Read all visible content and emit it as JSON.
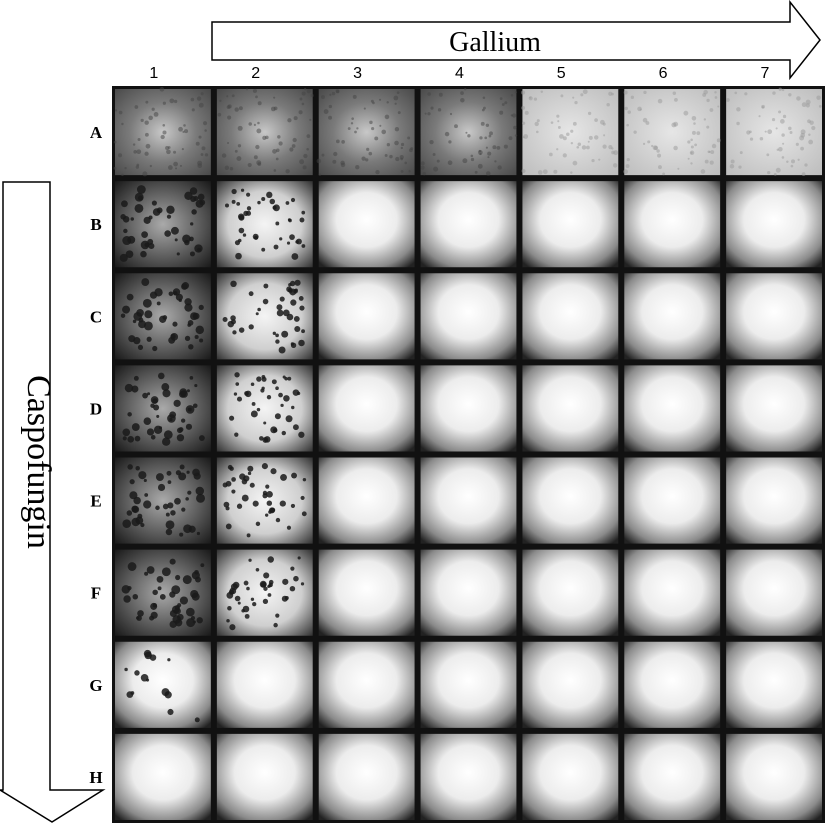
{
  "column_axis": {
    "title": "Gallium",
    "labels": [
      "1",
      "2",
      "3",
      "4",
      "5",
      "6",
      "7"
    ]
  },
  "row_axis": {
    "title": "Caspofungin",
    "labels": [
      "A",
      "B",
      "C",
      "D",
      "E",
      "F",
      "G",
      "H"
    ]
  }
}
